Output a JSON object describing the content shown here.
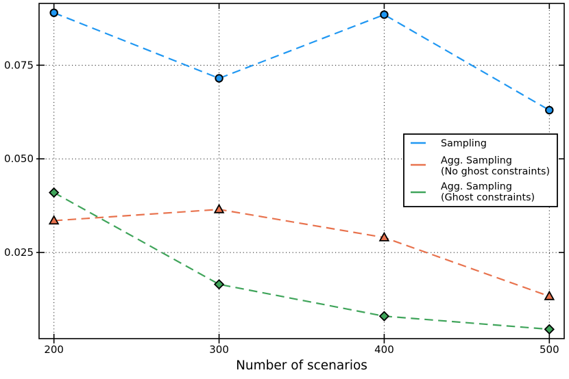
{
  "chart_data": {
    "type": "line",
    "title": "",
    "xlabel": "Number of scenarios",
    "ylabel": "",
    "x": [
      200,
      300,
      400,
      500
    ],
    "x_ticks": [
      "200",
      "300",
      "400",
      "500"
    ],
    "y_ticks": [
      {
        "value": 0.025,
        "label": "0.025"
      },
      {
        "value": 0.05,
        "label": "0.050"
      },
      {
        "value": 0.075,
        "label": "0.075"
      }
    ],
    "xlim": [
      191,
      509
    ],
    "ylim": [
      0.002,
      0.0915
    ],
    "grid": true,
    "grid_style": "dotted",
    "legend_position": "center-right",
    "series": [
      {
        "name": "Sampling",
        "color": "#1f97f2",
        "marker": "circle",
        "linestyle": "dashed",
        "values": [
          0.089,
          0.0715,
          0.0885,
          0.063
        ]
      },
      {
        "name": "Agg. Sampling (No ghost constraints)",
        "color": "#e8724d",
        "marker": "triangle",
        "linestyle": "dashed",
        "values": [
          0.0335,
          0.0365,
          0.029,
          0.0133
        ]
      },
      {
        "name": "Agg. Sampling (Ghost constraints)",
        "color": "#3fa45a",
        "marker": "diamond",
        "linestyle": "dashed",
        "values": [
          0.041,
          0.0165,
          0.008,
          0.0045
        ]
      }
    ],
    "legend": {
      "entries": [
        {
          "series": 0,
          "label_lines": [
            "Sampling"
          ]
        },
        {
          "series": 1,
          "label_lines": [
            "Agg. Sampling",
            "(No ghost constraints)"
          ]
        },
        {
          "series": 2,
          "label_lines": [
            "Agg. Sampling",
            "(Ghost constraints)"
          ]
        }
      ]
    }
  },
  "colors": {
    "background": "#ffffff",
    "axis": "#000000",
    "grid": "#1a1a1a",
    "marker_edge": "#000000",
    "legend_border": "#000000",
    "legend_background": "#ffffff"
  }
}
